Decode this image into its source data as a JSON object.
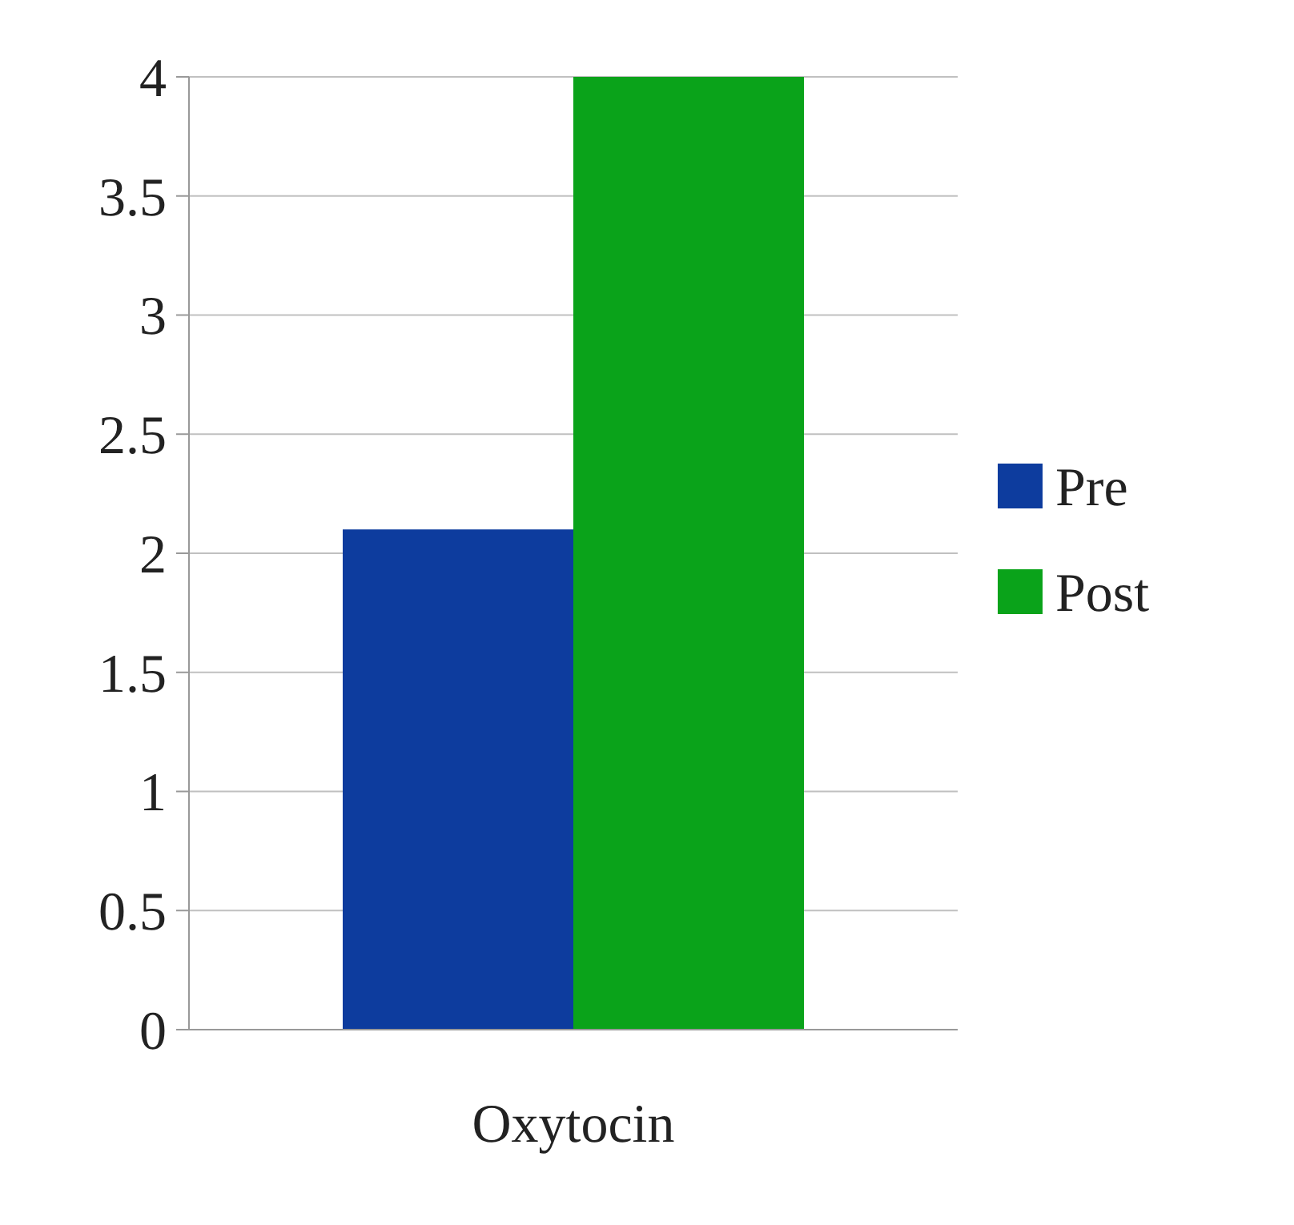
{
  "chart_data": {
    "type": "bar",
    "categories": [
      "Oxytocin"
    ],
    "series": [
      {
        "name": "Pre",
        "color": "#0d3c9e",
        "values": [
          2.1
        ]
      },
      {
        "name": "Post",
        "color": "#0aa31a",
        "values": [
          4.0
        ]
      }
    ],
    "ylim": [
      0,
      4
    ],
    "yticks": [
      0,
      0.5,
      1,
      1.5,
      2,
      2.5,
      3,
      3.5,
      4
    ],
    "grid": "y",
    "legend": "right"
  }
}
